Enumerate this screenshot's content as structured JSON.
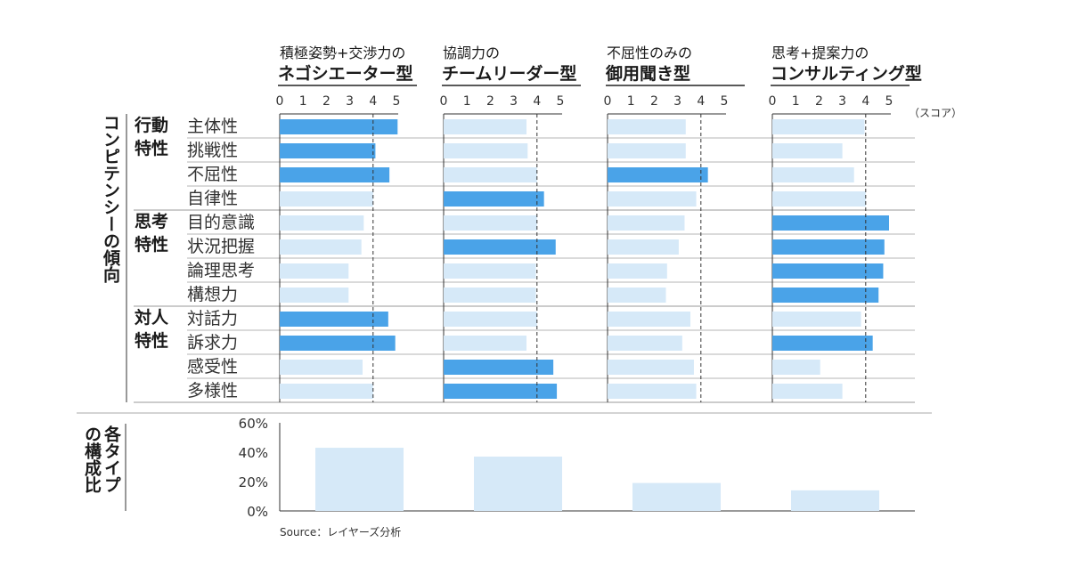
{
  "chart_data": [
    {
      "type": "bar",
      "orientation": "horizontal",
      "title": "コンピテンシーの傾向",
      "unit_label": "（スコア）",
      "xlim": [
        0,
        5
      ],
      "x_ticks": [
        "0",
        "1",
        "2",
        "3",
        "4",
        "5"
      ],
      "reference_line": 4,
      "colors": {
        "highlight": "#4aa3e8",
        "normal": "#d6e9f8"
      },
      "groups": [
        {
          "label": "行動\n特性",
          "items": [
            "主体性",
            "挑戦性",
            "不屈性",
            "自律性"
          ]
        },
        {
          "label": "思考\n特性",
          "items": [
            "目的意識",
            "状況把握",
            "論理思考",
            "構想力"
          ]
        },
        {
          "label": "対人\n特性",
          "items": [
            "対話力",
            "訴求力",
            "感受性",
            "多様性"
          ]
        }
      ],
      "series": [
        {
          "header_line1": "積極姿勢+交渉力の",
          "header_line2": "ネゴシエーター型",
          "values": [
            5.05,
            4.1,
            4.7,
            4.0,
            3.6,
            3.5,
            2.95,
            2.95,
            4.65,
            4.95,
            3.55,
            4.0
          ],
          "highlight": [
            true,
            true,
            true,
            false,
            false,
            false,
            false,
            false,
            true,
            true,
            false,
            false
          ]
        },
        {
          "header_line1": "協調力の",
          "header_line2": "チームリーダー型",
          "values": [
            3.55,
            3.6,
            4.0,
            4.3,
            4.0,
            4.8,
            3.95,
            3.95,
            4.0,
            3.55,
            4.7,
            4.85
          ],
          "highlight": [
            false,
            false,
            false,
            true,
            false,
            true,
            false,
            false,
            false,
            false,
            true,
            true
          ]
        },
        {
          "header_line1": "不屈性のみの",
          "header_line2": "御用聞き型",
          "values": [
            3.35,
            3.35,
            4.3,
            3.8,
            3.3,
            3.05,
            2.55,
            2.5,
            3.55,
            3.2,
            3.7,
            3.8
          ],
          "highlight": [
            false,
            false,
            true,
            false,
            false,
            false,
            false,
            false,
            false,
            false,
            false,
            false
          ]
        },
        {
          "header_line1": "思考+提案力の",
          "header_line2": "コンサルティング型",
          "values": [
            3.95,
            3.0,
            3.5,
            4.0,
            5.0,
            4.8,
            4.75,
            4.55,
            3.8,
            4.3,
            2.05,
            3.0
          ],
          "highlight": [
            false,
            false,
            false,
            false,
            true,
            true,
            true,
            true,
            false,
            true,
            false,
            false
          ]
        }
      ]
    },
    {
      "type": "bar",
      "title": "各タイプの構成比",
      "categories": [
        "ネゴシエーター型",
        "チームリーダー型",
        "御用聞き型",
        "コンサルティング型"
      ],
      "values": [
        43,
        37,
        19,
        14
      ],
      "ylim": [
        0,
        60
      ],
      "y_ticks": [
        "0%",
        "20%",
        "40%",
        "60%"
      ],
      "color": "#d6e9f8"
    }
  ],
  "source": "Source：レイヤーズ分析"
}
